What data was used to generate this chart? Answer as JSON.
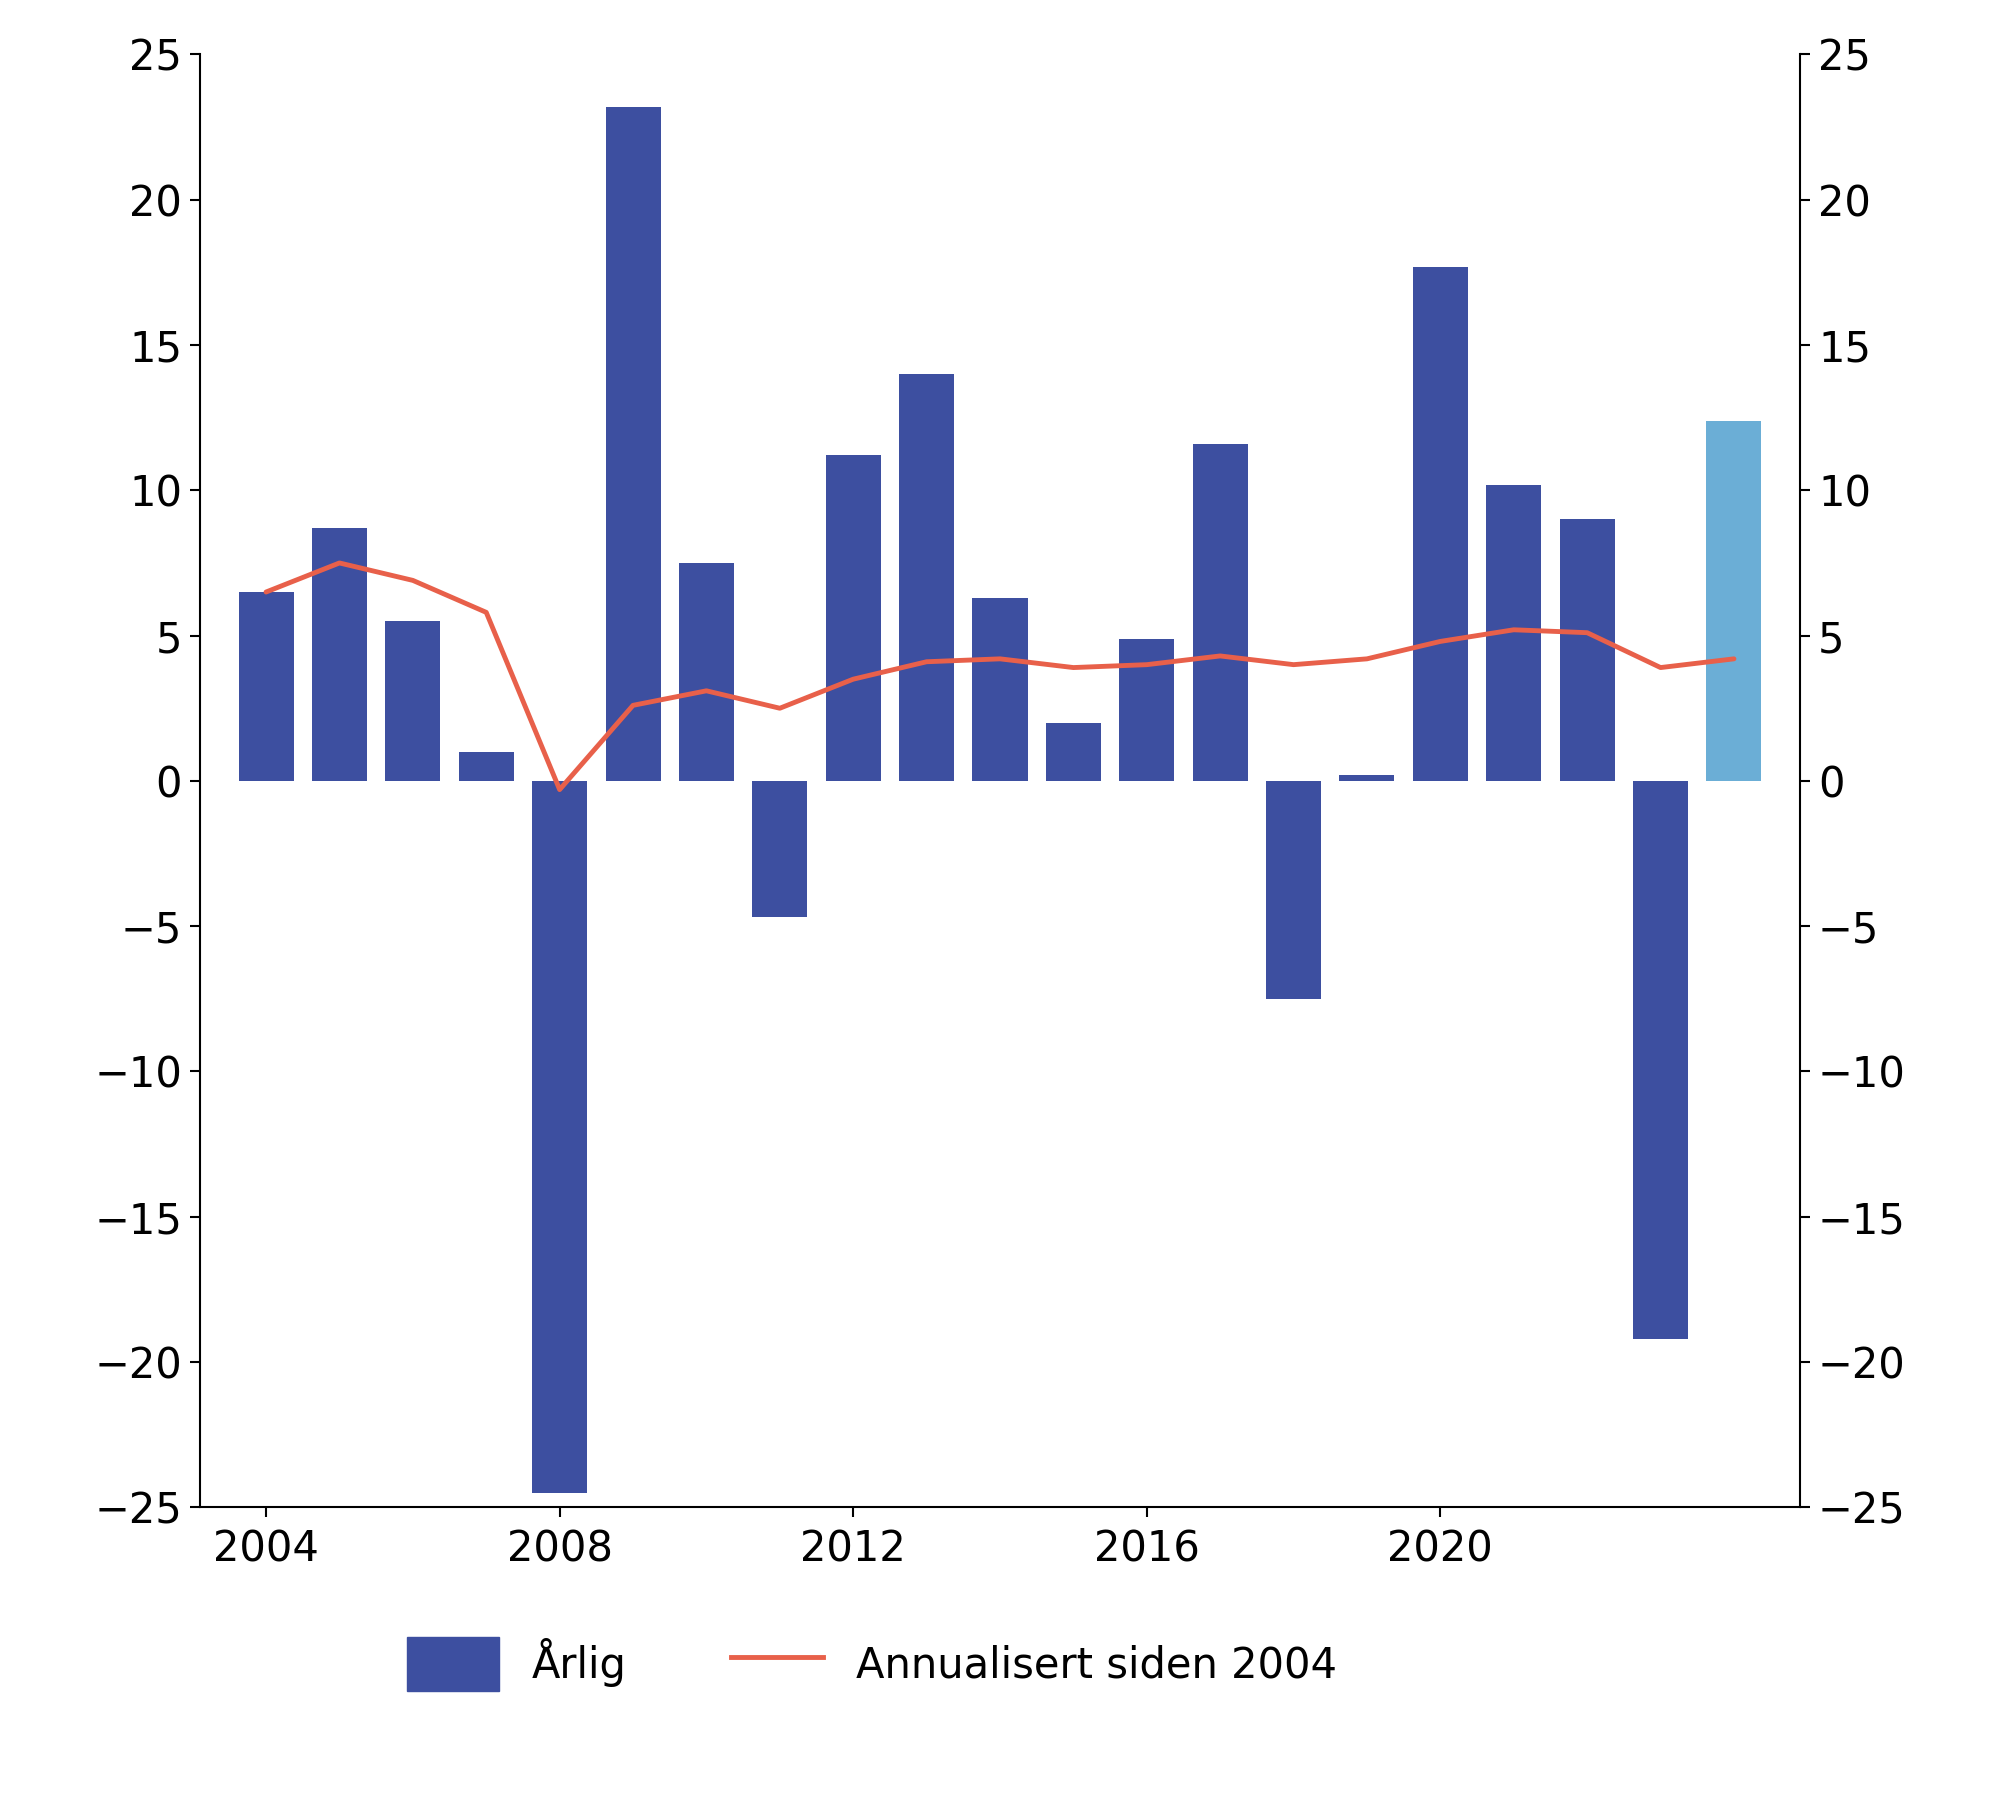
{
  "years": [
    2004,
    2005,
    2006,
    2007,
    2008,
    2009,
    2010,
    2011,
    2012,
    2013,
    2014,
    2015,
    2016,
    2017,
    2018,
    2019,
    2020,
    2021,
    2022,
    2023,
    2024
  ],
  "bar_values": [
    6.5,
    8.7,
    5.5,
    1.0,
    -24.5,
    23.2,
    7.5,
    -4.7,
    11.2,
    14.0,
    6.3,
    2.0,
    4.9,
    11.6,
    -7.5,
    0.2,
    17.7,
    10.2,
    9.0,
    -19.2,
    12.4
  ],
  "bar_colors": [
    "#3d4fa0",
    "#3d4fa0",
    "#3d4fa0",
    "#3d4fa0",
    "#3d4fa0",
    "#3d4fa0",
    "#3d4fa0",
    "#3d4fa0",
    "#3d4fa0",
    "#3d4fa0",
    "#3d4fa0",
    "#3d4fa0",
    "#3d4fa0",
    "#3d4fa0",
    "#3d4fa0",
    "#3d4fa0",
    "#3d4fa0",
    "#3d4fa0",
    "#3d4fa0",
    "#3d4fa0",
    "#6baed6"
  ],
  "line_values": [
    6.5,
    7.5,
    6.9,
    5.8,
    -0.3,
    2.6,
    3.1,
    2.5,
    3.5,
    4.1,
    4.2,
    3.9,
    4.0,
    4.3,
    4.0,
    4.2,
    4.8,
    5.2,
    5.1,
    3.9,
    4.2
  ],
  "ylim": [
    -25,
    25
  ],
  "yticks": [
    -25,
    -20,
    -15,
    -10,
    -5,
    0,
    5,
    10,
    15,
    20,
    25
  ],
  "xticks": [
    2004,
    2008,
    2012,
    2016,
    2020
  ],
  "bar_label": "Årlig",
  "line_label": "Annualisert siden 2004",
  "bar_color_legend": "#3d4fa0",
  "line_color": "#e8604a",
  "background_color": "#ffffff",
  "bar_width": 0.75,
  "last_bar_color": "#6baed6",
  "xlim_left": 2003.1,
  "xlim_right": 2024.9
}
